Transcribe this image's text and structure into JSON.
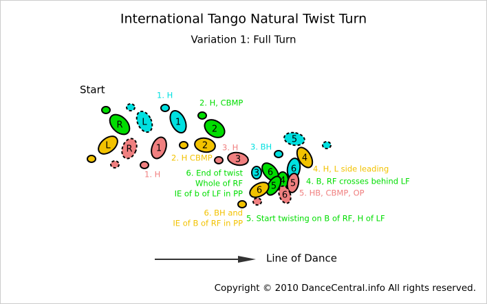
{
  "title": "International Tango Natural Twist Turn",
  "subtitle": "Variation 1: Full Turn",
  "start": "Start",
  "feet": [
    "R",
    "L",
    "L",
    "R",
    "1",
    "1",
    "2",
    "2",
    "3",
    "3",
    "5",
    "4",
    "6",
    "6",
    "4",
    "5",
    "5",
    "6",
    "6"
  ],
  "annotations": [
    "1. H",
    "2. H, CBMP",
    "3. H",
    "3. BH",
    "2. H CBMP",
    "1. H",
    "6. End of twist",
    "Whole of RF",
    "IE of b of LF in PP",
    "4. H, L side leading",
    "4. B, RF crosses behind LF",
    "5. HB, CBMP, OP",
    "6. BH and",
    "IE of B of RF in PP",
    "5. Start twisting on B of RF, H of LF"
  ],
  "direction": "Line of Dance",
  "copyright": "Copyright © 2010 DanceCentral.info All rights reserved."
}
